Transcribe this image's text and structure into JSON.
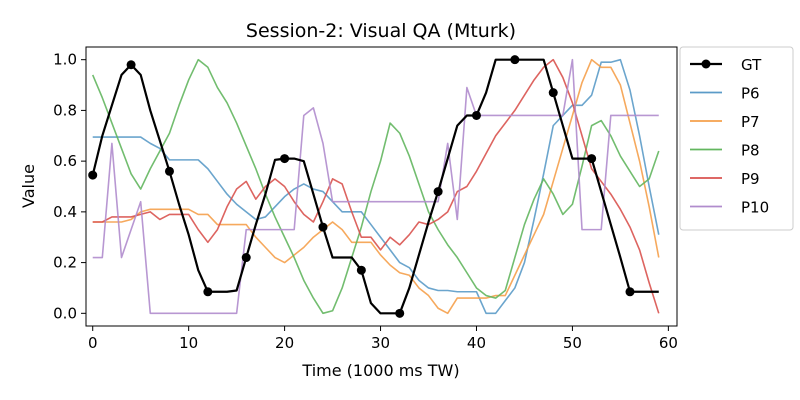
{
  "chart_data": {
    "type": "line",
    "title": "Session-2: Visual QA (Mturk)",
    "xlabel": "Time (1000 ms TW)",
    "ylabel": "Value",
    "xlim": [
      -0.7,
      60.9
    ],
    "ylim": [
      -0.05,
      1.05
    ],
    "xticks": [
      0,
      10,
      20,
      30,
      40,
      50,
      60
    ],
    "yticks": [
      "0.0",
      "0.2",
      "0.4",
      "0.6",
      "0.8",
      "1.0"
    ],
    "grid": false,
    "legend_position": "outside-right",
    "series": [
      {
        "name": "GT",
        "color": "#000000",
        "marker": "circle",
        "marker_every": 4,
        "values": [
          0.545,
          0.7,
          0.82,
          0.94,
          0.98,
          0.94,
          0.8,
          0.68,
          0.56,
          0.43,
          0.31,
          0.17,
          0.085,
          0.085,
          0.085,
          0.09,
          0.22,
          0.35,
          0.47,
          0.605,
          0.61,
          0.61,
          0.6,
          0.47,
          0.34,
          0.22,
          0.22,
          0.22,
          0.17,
          0.04,
          0.0,
          0.0,
          0.0,
          0.1,
          0.23,
          0.36,
          0.48,
          0.61,
          0.74,
          0.78,
          0.78,
          0.87,
          1.0,
          1.0,
          1.0,
          1.0,
          1.0,
          1.0,
          0.87,
          0.74,
          0.61,
          0.61,
          0.61,
          0.48,
          0.35,
          0.22,
          0.085,
          0.085,
          0.085,
          0.085
        ]
      },
      {
        "name": "P6",
        "color": "#5b9bc8",
        "marker": "none",
        "values": [
          0.695,
          0.695,
          0.695,
          0.695,
          0.695,
          0.695,
          0.67,
          0.65,
          0.605,
          0.605,
          0.605,
          0.605,
          0.57,
          0.52,
          0.47,
          0.43,
          0.4,
          0.37,
          0.38,
          0.42,
          0.46,
          0.49,
          0.51,
          0.49,
          0.48,
          0.44,
          0.4,
          0.4,
          0.4,
          0.35,
          0.3,
          0.25,
          0.2,
          0.18,
          0.13,
          0.1,
          0.09,
          0.09,
          0.085,
          0.085,
          0.085,
          0.0,
          0.0,
          0.05,
          0.1,
          0.2,
          0.37,
          0.55,
          0.74,
          0.78,
          0.82,
          0.82,
          0.86,
          0.99,
          0.99,
          1.0,
          0.88,
          0.7,
          0.5,
          0.31
        ]
      },
      {
        "name": "P7",
        "color": "#f5a04b",
        "marker": "none",
        "values": [
          0.36,
          0.36,
          0.36,
          0.36,
          0.37,
          0.4,
          0.41,
          0.41,
          0.41,
          0.41,
          0.41,
          0.39,
          0.39,
          0.35,
          0.35,
          0.35,
          0.35,
          0.3,
          0.26,
          0.22,
          0.2,
          0.23,
          0.26,
          0.3,
          0.33,
          0.36,
          0.33,
          0.28,
          0.28,
          0.28,
          0.23,
          0.19,
          0.16,
          0.15,
          0.1,
          0.07,
          0.02,
          0.0,
          0.06,
          0.06,
          0.06,
          0.06,
          0.07,
          0.07,
          0.15,
          0.23,
          0.31,
          0.39,
          0.52,
          0.65,
          0.78,
          0.91,
          1.0,
          0.97,
          0.97,
          0.9,
          0.75,
          0.6,
          0.42,
          0.22
        ]
      },
      {
        "name": "P8",
        "color": "#63b65f",
        "marker": "none",
        "values": [
          0.94,
          0.85,
          0.75,
          0.65,
          0.55,
          0.49,
          0.57,
          0.64,
          0.71,
          0.82,
          0.92,
          1.0,
          0.97,
          0.89,
          0.83,
          0.75,
          0.66,
          0.57,
          0.47,
          0.38,
          0.3,
          0.22,
          0.13,
          0.06,
          0.0,
          0.01,
          0.1,
          0.22,
          0.34,
          0.48,
          0.6,
          0.75,
          0.71,
          0.62,
          0.51,
          0.4,
          0.33,
          0.27,
          0.22,
          0.16,
          0.1,
          0.07,
          0.06,
          0.09,
          0.22,
          0.35,
          0.45,
          0.53,
          0.47,
          0.39,
          0.43,
          0.58,
          0.74,
          0.76,
          0.7,
          0.62,
          0.56,
          0.5,
          0.53,
          0.64
        ]
      },
      {
        "name": "P9",
        "color": "#d9534f",
        "marker": "none",
        "values": [
          0.36,
          0.36,
          0.38,
          0.38,
          0.38,
          0.39,
          0.4,
          0.37,
          0.39,
          0.39,
          0.39,
          0.33,
          0.28,
          0.33,
          0.42,
          0.49,
          0.52,
          0.45,
          0.5,
          0.53,
          0.5,
          0.44,
          0.39,
          0.36,
          0.44,
          0.53,
          0.51,
          0.4,
          0.3,
          0.3,
          0.25,
          0.3,
          0.27,
          0.31,
          0.36,
          0.35,
          0.37,
          0.4,
          0.48,
          0.5,
          0.56,
          0.63,
          0.7,
          0.75,
          0.8,
          0.86,
          0.92,
          0.97,
          1.0,
          0.93,
          0.83,
          0.7,
          0.57,
          0.52,
          0.47,
          0.41,
          0.34,
          0.25,
          0.12,
          0.0
        ]
      },
      {
        "name": "P10",
        "color": "#b08ccd",
        "marker": "none",
        "values": [
          0.22,
          0.22,
          0.67,
          0.22,
          0.33,
          0.44,
          0.0,
          0.0,
          0.0,
          0.0,
          0.0,
          0.0,
          0.0,
          0.0,
          0.0,
          0.0,
          0.33,
          0.33,
          0.33,
          0.33,
          0.33,
          0.33,
          0.78,
          0.81,
          0.67,
          0.44,
          0.44,
          0.44,
          0.44,
          0.44,
          0.44,
          0.44,
          0.44,
          0.44,
          0.44,
          0.44,
          0.44,
          0.67,
          0.37,
          0.89,
          0.78,
          0.78,
          0.78,
          0.78,
          0.78,
          0.78,
          0.78,
          0.78,
          0.78,
          0.78,
          1.0,
          0.33,
          0.33,
          0.33,
          0.78,
          0.78,
          0.78,
          0.78,
          0.78,
          0.78
        ]
      }
    ]
  }
}
